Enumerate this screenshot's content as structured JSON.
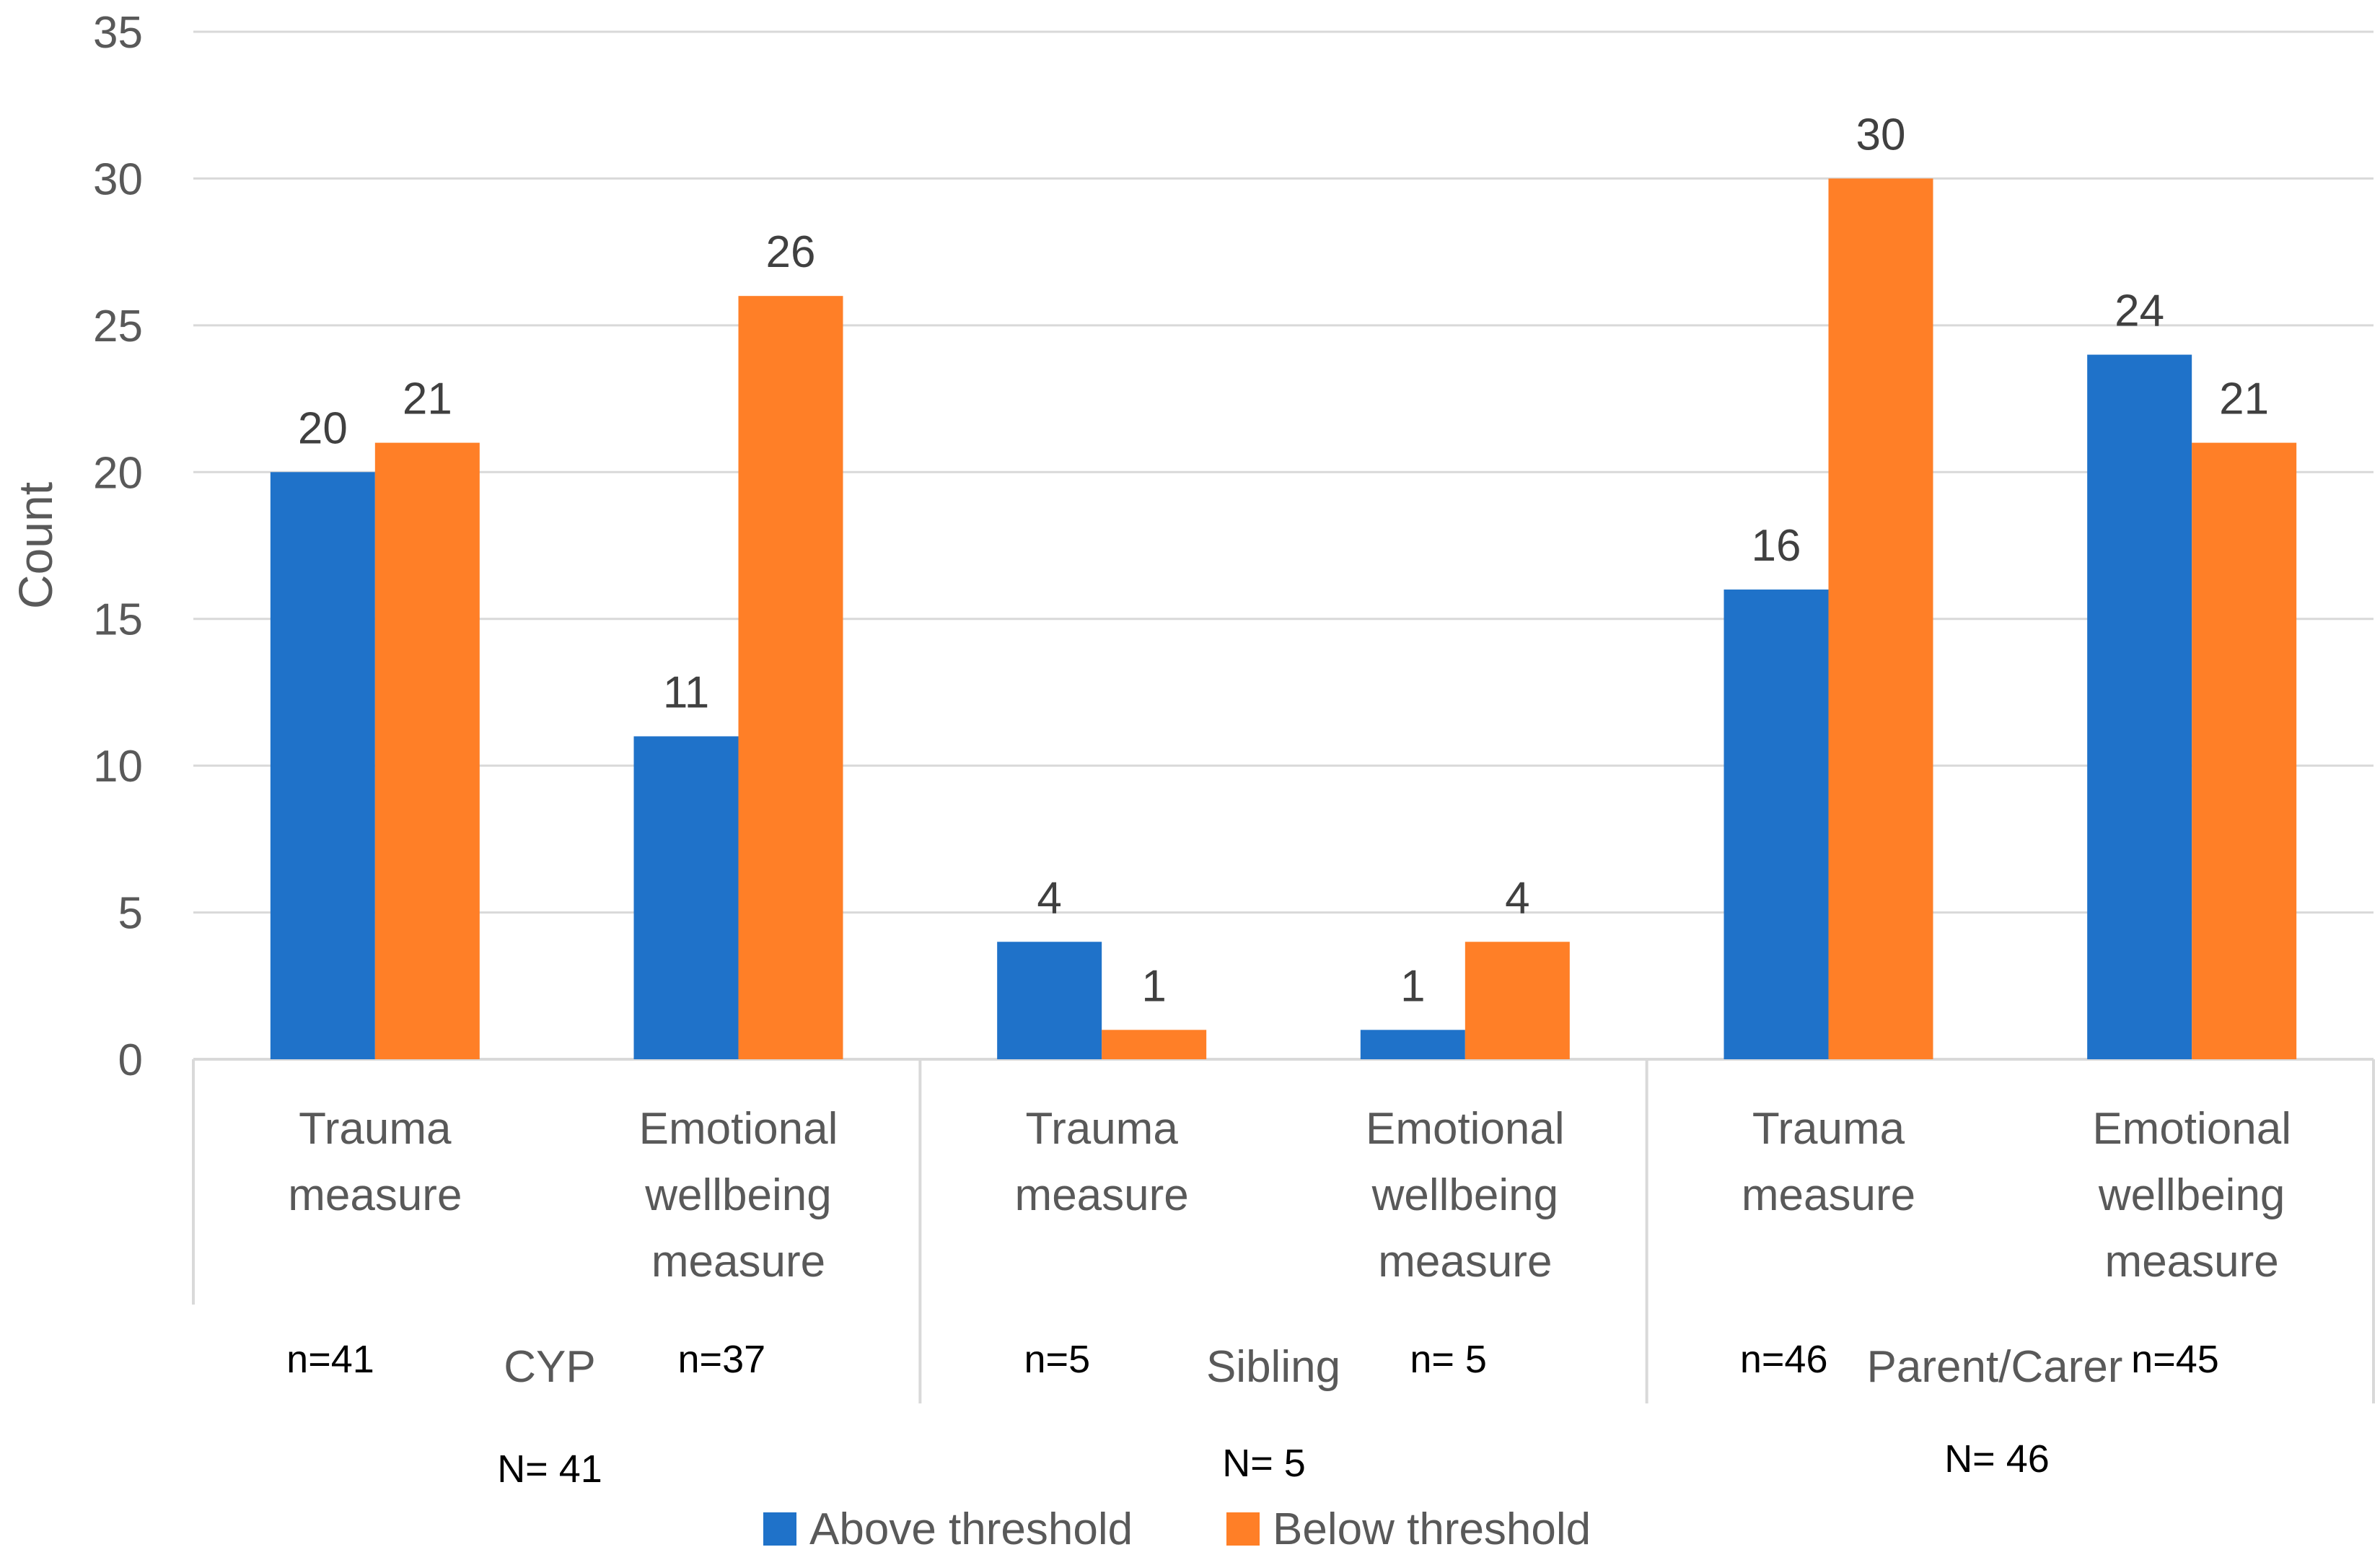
{
  "chart_data": {
    "type": "bar",
    "ylabel": "Count",
    "ylim": [
      0,
      35
    ],
    "yticks": [
      0,
      5,
      10,
      15,
      20,
      25,
      30,
      35
    ],
    "grid": true,
    "legend_position": "bottom",
    "groups": [
      {
        "name": "CYP",
        "total_label": "N= 41",
        "categories": [
          {
            "label_lines": [
              "Trauma",
              "measure"
            ],
            "n_label": "n=41",
            "values": [
              20,
              21
            ]
          },
          {
            "label_lines": [
              "Emotional",
              "wellbeing",
              "measure"
            ],
            "n_label": "n=37",
            "values": [
              11,
              26
            ]
          }
        ]
      },
      {
        "name": "Sibling",
        "total_label": "N= 5",
        "categories": [
          {
            "label_lines": [
              "Trauma",
              "measure"
            ],
            "n_label": "n=5",
            "values": [
              4,
              1
            ]
          },
          {
            "label_lines": [
              "Emotional",
              "wellbeing",
              "measure"
            ],
            "n_label": "n= 5",
            "values": [
              1,
              4
            ]
          }
        ]
      },
      {
        "name": "Parent/Carer",
        "total_label": "N= 46",
        "categories": [
          {
            "label_lines": [
              "Trauma",
              "measure"
            ],
            "n_label": "n=46",
            "values": [
              16,
              30
            ]
          },
          {
            "label_lines": [
              "Emotional",
              "wellbeing",
              "measure"
            ],
            "n_label": "n=45",
            "values": [
              24,
              21
            ]
          }
        ]
      }
    ],
    "series": [
      {
        "name": "Above threshold",
        "color": "#1F72C9"
      },
      {
        "name": "Below threshold",
        "color": "#FF7F27"
      }
    ]
  }
}
